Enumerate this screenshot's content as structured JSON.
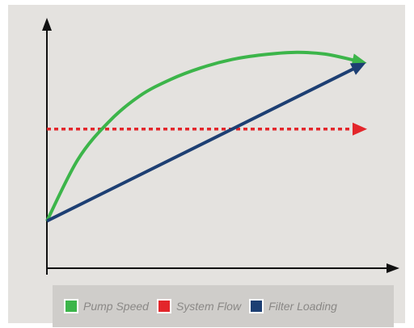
{
  "chart_data": {
    "type": "line",
    "title": "",
    "xlabel": "",
    "ylabel": "",
    "xlim": [
      0,
      100
    ],
    "ylim": [
      0,
      100
    ],
    "grid": false,
    "legend_placement": "bottom",
    "series": [
      {
        "name": "Pump Speed",
        "color": "#3cb54a",
        "style": "solid",
        "x": [
          0,
          10,
          20,
          30,
          40,
          50,
          60,
          70,
          80,
          90,
          100
        ],
        "y": [
          20,
          46,
          62,
          73,
          80,
          85,
          88.5,
          90.5,
          91.5,
          90.8,
          88
        ]
      },
      {
        "name": "System Flow",
        "color": "#e3262b",
        "style": "dotted",
        "x": [
          0,
          100
        ],
        "y": [
          59,
          59
        ]
      },
      {
        "name": "Filter Loading",
        "color": "#1d3f73",
        "style": "solid",
        "x": [
          0,
          100
        ],
        "y": [
          20,
          85
        ]
      }
    ]
  },
  "legend": {
    "items": [
      {
        "label": "Pump Speed",
        "color": "#3cb54a"
      },
      {
        "label": "System Flow",
        "color": "#e3262b"
      },
      {
        "label": "Filter Loading",
        "color": "#1d3f73"
      }
    ]
  }
}
